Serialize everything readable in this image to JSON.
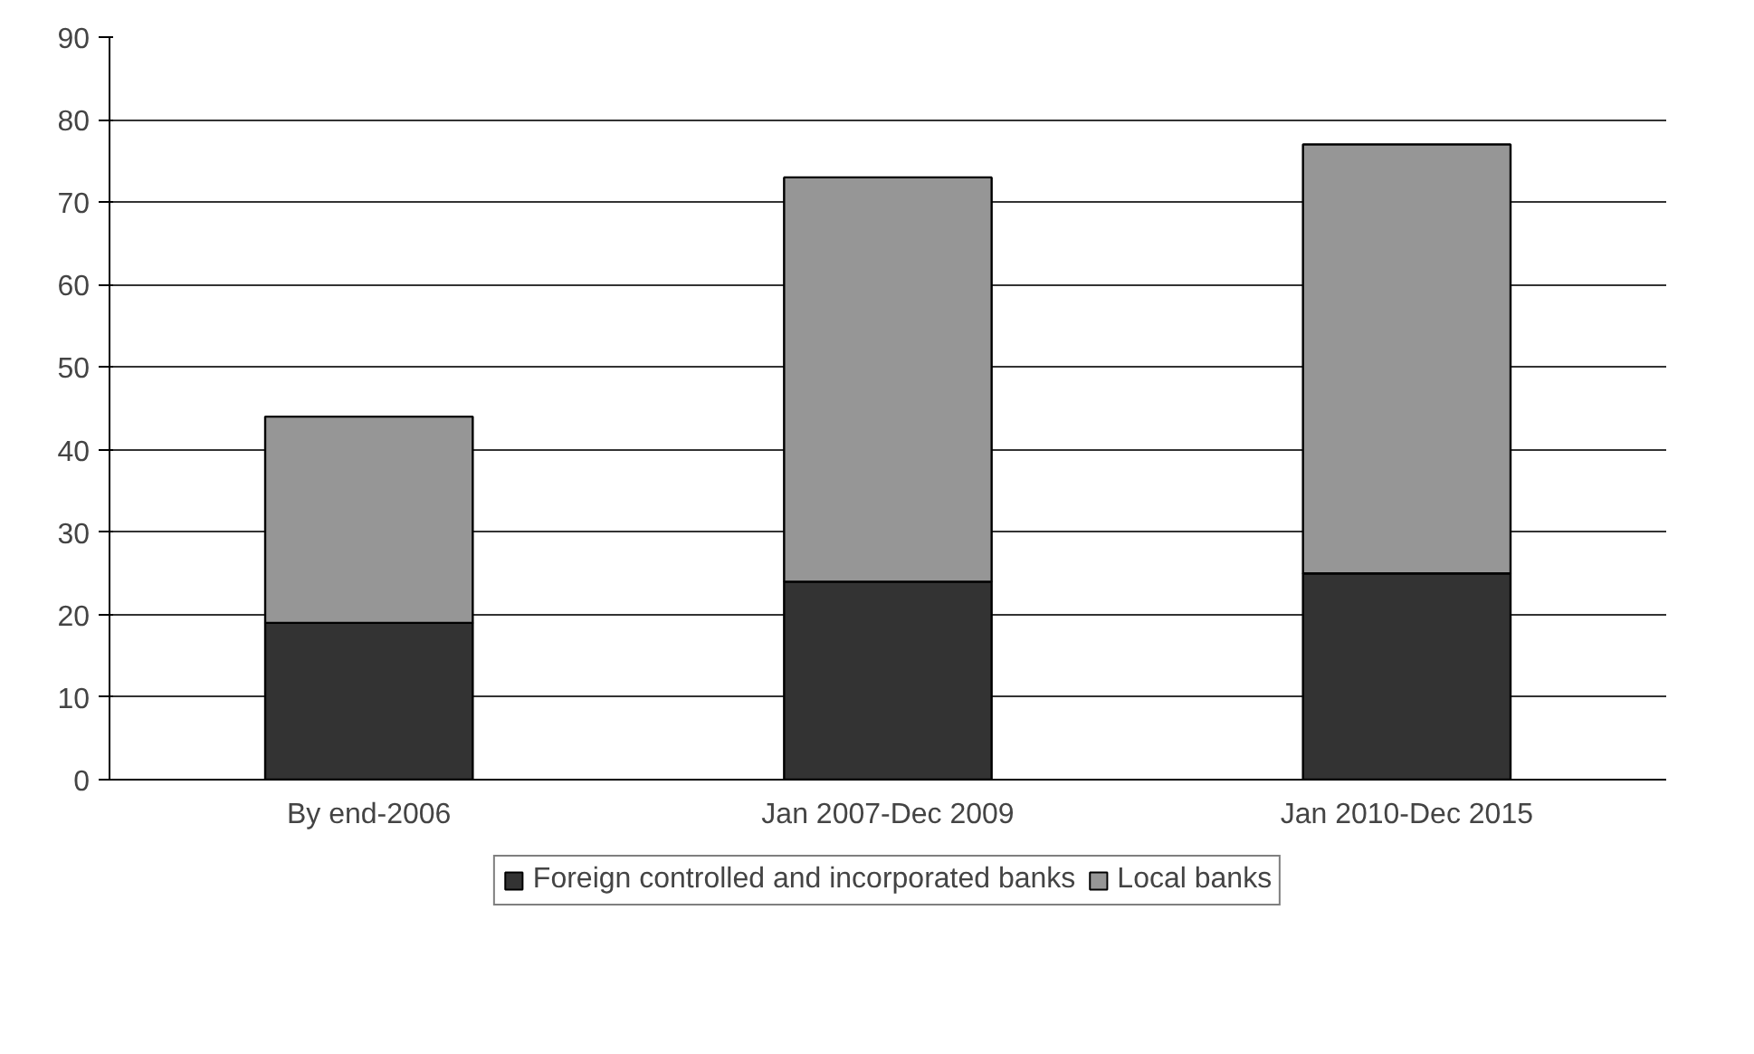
{
  "chart_data": {
    "type": "bar",
    "stacked": true,
    "categories": [
      "By end-2006",
      "Jan 2007-Dec 2009",
      "Jan 2010-Dec 2015"
    ],
    "series": [
      {
        "name": "Foreign controlled and incorporated banks",
        "color": "#333333",
        "values": [
          19,
          24,
          25
        ]
      },
      {
        "name": "Local banks",
        "color": "#969696",
        "values": [
          25,
          49,
          52
        ]
      }
    ],
    "ylim": [
      0,
      90
    ],
    "yticks": [
      0,
      10,
      20,
      30,
      40,
      50,
      60,
      70,
      80,
      90
    ],
    "grid": "y",
    "legend": "bottom"
  }
}
